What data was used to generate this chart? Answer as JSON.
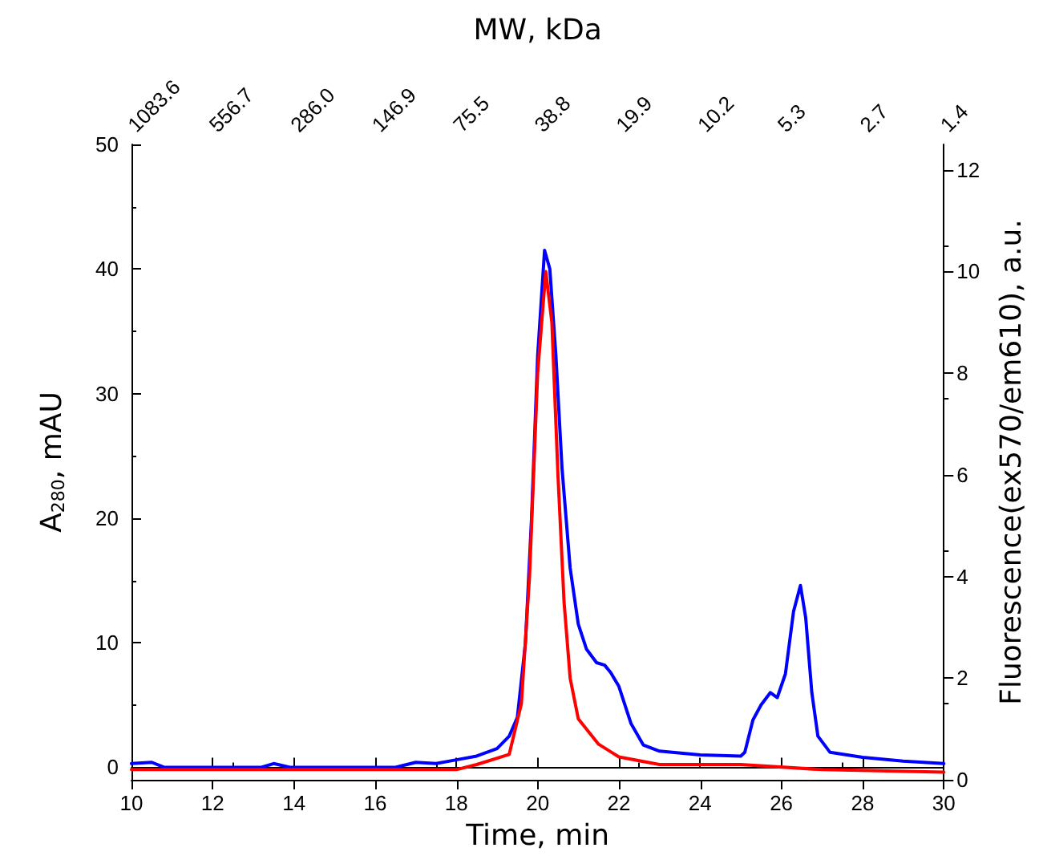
{
  "chart_data": {
    "type": "line",
    "xlabel": "Time, min",
    "ylabel": "A$_{280}$, mAU",
    "y2label": "Fluorescence(ex570/em610), a.u.",
    "x2label": "MW, kDa",
    "xlim": [
      10,
      30
    ],
    "xticks": [
      10,
      12,
      14,
      16,
      18,
      20,
      22,
      24,
      26,
      28,
      30
    ],
    "x2lim": [
      1083.6,
      1.4
    ],
    "x2ticks": [
      1083.6,
      556.7,
      {
        "value": 286,
        "label": "286.0"
      },
      146.9,
      75.5,
      38.8,
      19.9,
      10.2,
      5.3,
      2.7,
      1.4
    ],
    "log": "x2",
    "ylim": [
      -1,
      50
    ],
    "yticks": [
      0,
      10,
      20,
      30,
      40,
      50
    ],
    "y2lim": [
      0,
      12.5
    ],
    "y2ticks": [
      0,
      2,
      4,
      6,
      8,
      10,
      12
    ],
    "marker": "none",
    "series": [
      {
        "color": "#0000ff",
        "x": [
          10,
          10.5,
          10.8,
          13.2,
          13.5,
          13.9,
          16.5,
          17,
          17.5,
          18,
          18.5,
          19,
          19.3,
          19.5,
          19.7,
          19.85,
          20,
          20.17,
          20.3,
          20.45,
          20.6,
          20.8,
          21,
          21.2,
          21.45,
          21.65,
          21.8,
          22,
          22.3,
          22.6,
          23,
          24,
          25,
          25.1,
          25.3,
          25.5,
          25.73,
          25.9,
          26.1,
          26.3,
          26.47,
          26.6,
          26.75,
          26.9,
          27.2,
          28,
          29,
          30
        ],
        "values": [
          0.3,
          0.4,
          0,
          0,
          0.3,
          0,
          0,
          0.4,
          0.3,
          0.6,
          0.9,
          1.5,
          2.5,
          4,
          10,
          20,
          33,
          41.5,
          40,
          33,
          24,
          16,
          11.5,
          9.5,
          8.4,
          8.2,
          7.6,
          6.5,
          3.5,
          1.8,
          1.3,
          1,
          0.9,
          1.2,
          3.8,
          5,
          6,
          5.6,
          7.5,
          12.5,
          14.6,
          12,
          6,
          2.5,
          1.2,
          0.8,
          0.5,
          0.3
        ]
      },
      {
        "color": "#ff0000",
        "axis": "y2",
        "x": [
          10,
          14,
          18,
          18.5,
          19.3,
          19.6,
          19.8,
          20,
          20.2,
          20.35,
          20.5,
          20.65,
          20.8,
          21,
          21.5,
          22,
          23,
          25,
          27,
          30
        ],
        "values": [
          0.2,
          0.2,
          0.2,
          0.3,
          0.5,
          1.5,
          4,
          8,
          10,
          9,
          6,
          3.5,
          2,
          1.2,
          0.7,
          0.45,
          0.3,
          0.3,
          0.2,
          0.15
        ]
      }
    ]
  }
}
